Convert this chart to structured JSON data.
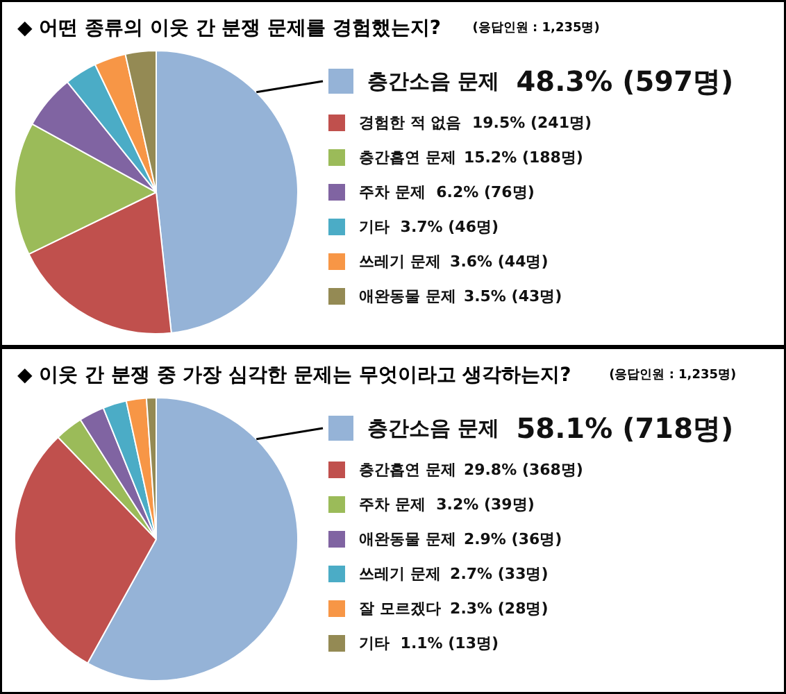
{
  "chart_data": [
    {
      "type": "pie",
      "title": "◆ 어떤 종류의 이웃 간 분쟁 문제를 경험했는지?",
      "subtitle": "(응답인원 : 1,235명)",
      "legend": "right",
      "categories": [
        "층간소음 문제",
        "경험한 적 없음",
        "층간흡연 문제",
        "주차 문제",
        "기타",
        "쓰레기 문제",
        "애완동물 문제"
      ],
      "values": [
        48.3,
        19.5,
        15.2,
        6.2,
        3.7,
        3.6,
        3.5
      ],
      "value_labels": [
        "48.3% (597명)",
        "19.5% (241명)",
        "15.2% (188명)",
        "6.2% (76명)",
        "3.7% (46명)",
        "3.6% (44명)",
        "3.5% (43명)"
      ],
      "colors": [
        "#95b3d7",
        "#c0504d",
        "#9bbb59",
        "#8064a2",
        "#4bacc6",
        "#f79646",
        "#948a54"
      ]
    },
    {
      "type": "pie",
      "title": "◆ 이웃 간 분쟁 중 가장 심각한 문제는 무엇이라고 생각하는지?",
      "subtitle": "(응답인원 : 1,235명)",
      "legend": "right",
      "categories": [
        "층간소음 문제",
        "층간흡연 문제",
        "주차 문제",
        "애완동물 문제",
        "쓰레기 문제",
        "잘 모르겠다",
        "기타"
      ],
      "values": [
        58.1,
        29.8,
        3.2,
        2.9,
        2.7,
        2.3,
        1.1
      ],
      "value_labels": [
        "58.1% (718명)",
        "29.8% (368명)",
        "3.2% (39명)",
        "2.9% (36명)",
        "2.7% (33명)",
        "2.3% (28명)",
        "1.1% (13명)"
      ],
      "colors": [
        "#95b3d7",
        "#c0504d",
        "#9bbb59",
        "#8064a2",
        "#4bacc6",
        "#f79646",
        "#948a54"
      ]
    }
  ]
}
